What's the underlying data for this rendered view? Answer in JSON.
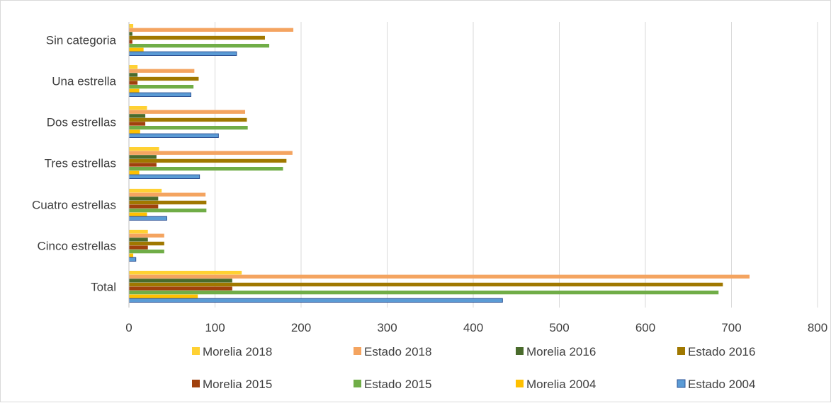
{
  "chart_data": {
    "type": "bar",
    "orientation": "horizontal",
    "categories": [
      "Sin categoria",
      "Una estrella",
      "Dos estrellas",
      "Tres estrellas",
      "Cuatro estrellas",
      "Cinco estrellas",
      "Total"
    ],
    "series": [
      {
        "name": "Morelia 2018",
        "color": "#FFD133",
        "values": [
          5,
          10,
          21,
          35,
          38,
          22,
          131
        ]
      },
      {
        "name": "Estado 2018",
        "color": "#F4A460",
        "values": [
          191,
          76,
          135,
          190,
          89,
          41,
          721
        ]
      },
      {
        "name": "Morelia 2016",
        "color": "#4A6B2C",
        "values": [
          4,
          10,
          19,
          32,
          34,
          22,
          120
        ]
      },
      {
        "name": "Estado 2016",
        "color": "#A07800",
        "values": [
          158,
          81,
          137,
          183,
          90,
          41,
          690
        ]
      },
      {
        "name": "Morelia 2015",
        "color": "#A0410D",
        "values": [
          4,
          10,
          19,
          32,
          34,
          22,
          120
        ]
      },
      {
        "name": "Estado 2015",
        "color": "#70AD47",
        "values": [
          163,
          75,
          138,
          179,
          90,
          41,
          685
        ]
      },
      {
        "name": "Morelia 2004",
        "color": "#FFC000",
        "values": [
          17,
          12,
          13,
          12,
          21,
          5,
          80
        ]
      },
      {
        "name": "Estado 2004",
        "color": "#5B9BD5",
        "edge": "#2F5597",
        "values": [
          125,
          72,
          104,
          82,
          44,
          8,
          434
        ]
      }
    ],
    "xlim": [
      0,
      800
    ],
    "xticks": [
      0,
      100,
      200,
      300,
      400,
      500,
      600,
      700,
      800
    ],
    "grid": true,
    "legend": "bottom"
  }
}
